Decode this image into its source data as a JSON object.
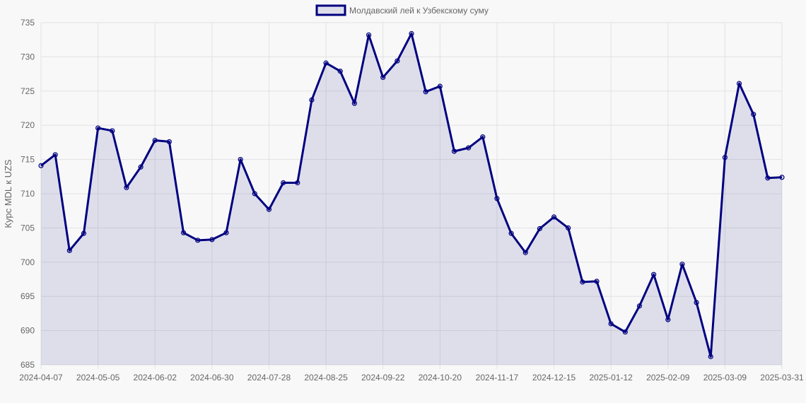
{
  "chart_data": {
    "type": "line",
    "ylabel": "Курс MDL к UZS",
    "ylim": [
      685,
      735
    ],
    "yticks": [
      685,
      690,
      695,
      700,
      705,
      710,
      715,
      720,
      725,
      730,
      735
    ],
    "xlabels": [
      "2024-04-07",
      "2024-05-05",
      "2024-06-02",
      "2024-06-30",
      "2024-07-28",
      "2024-08-25",
      "2024-09-22",
      "2024-10-20",
      "2024-11-17",
      "2024-12-15",
      "2025-01-12",
      "2025-02-09",
      "2025-03-09",
      "2025-03-31"
    ],
    "grid": true,
    "legend_position": "top",
    "series": [
      {
        "name": "Молдавский лей к Узбекскому суму",
        "color": "#000080",
        "fill": "rgba(0,0,128,0.1)",
        "values": [
          714.1,
          715.7,
          701.7,
          704.2,
          719.6,
          719.2,
          710.9,
          713.9,
          717.8,
          717.6,
          704.3,
          703.2,
          703.3,
          704.3,
          715.0,
          710.0,
          707.7,
          711.6,
          711.6,
          723.7,
          729.1,
          727.9,
          723.2,
          733.2,
          727.0,
          729.4,
          733.4,
          724.9,
          725.7,
          716.2,
          716.7,
          718.3,
          709.3,
          704.2,
          701.4,
          704.9,
          706.6,
          705.0,
          697.1,
          697.2,
          691.0,
          689.8,
          693.6,
          698.2,
          691.6,
          699.7,
          694.1,
          686.2,
          715.3,
          726.1,
          721.6,
          712.3,
          712.4
        ]
      }
    ]
  }
}
